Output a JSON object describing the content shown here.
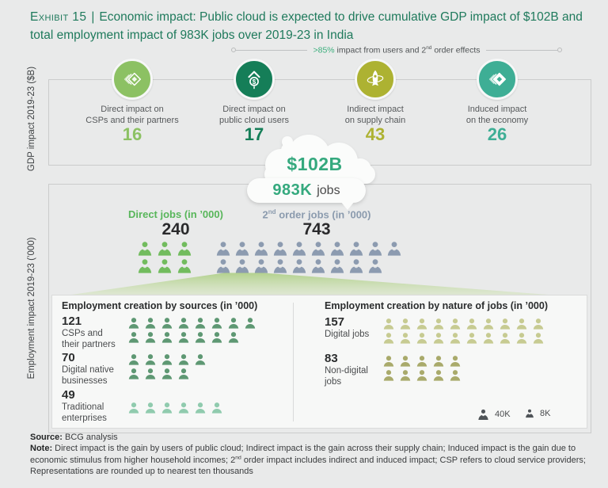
{
  "exhibit": {
    "label": "Exhibit 15",
    "separator": "|",
    "title": "Economic impact: Public cloud is expected to drive cumulative GDP impact of $102B and total employment impact of 983K jobs over 2019-23 in India"
  },
  "bracket": {
    "highlight": ">85%",
    "text_a": " impact from users and 2",
    "sup": "nd",
    "text_b": " order effects"
  },
  "gdp_section": {
    "axis_label": "GDP impact 2019-23 ($B)",
    "items": [
      {
        "label": "Direct impact on\nCSPs and their partners",
        "value": "16",
        "color": "#8CC163",
        "icon": "layered-diamond"
      },
      {
        "label": "Direct impact on\npublic cloud users",
        "value": "17",
        "color": "#157E58",
        "icon": "growth-dollar"
      },
      {
        "label": "Indirect impact\non supply chain",
        "value": "43",
        "color": "#ADB232",
        "icon": "rocket-orbit"
      },
      {
        "label": "Induced impact\non the economy",
        "value": "26",
        "color": "#3EAE95",
        "icon": "stacked-diamonds"
      }
    ]
  },
  "cloud": {
    "gdp_total": "$102B",
    "jobs_total": "983K",
    "jobs_suffix": "jobs"
  },
  "employment_section": {
    "axis_label": "Employment impact 2019-23 (’000)",
    "direct": {
      "label": "Direct jobs (in ’000)",
      "value": "240",
      "people": {
        "rows": [
          3,
          3
        ],
        "color": "#72BC5E",
        "type": "suit",
        "size": 20,
        "gap": 5
      }
    },
    "second_order": {
      "label_a": "2",
      "label_sup": "nd",
      "label_b": " order jobs (in ’000)",
      "value": "743",
      "people": {
        "rows": [
          10,
          9
        ],
        "color": "#8C9BB0",
        "type": "suit",
        "size": 20,
        "gap": 4
      }
    }
  },
  "breakdown": {
    "sources": {
      "header": "Employment creation by sources (in ’000)",
      "groups": [
        {
          "value": "121",
          "label": "CSPs and\ntheir partners",
          "people": {
            "rows": [
              8,
              7
            ],
            "color": "#5E9873",
            "type": "plain",
            "size": 16,
            "gap": 5
          }
        },
        {
          "value": "70",
          "label": "Digital native\nbusinesses",
          "people": {
            "rows": [
              5,
              4
            ],
            "color": "#5E9873",
            "type": "plain",
            "size": 16,
            "gap": 5
          }
        },
        {
          "value": "49",
          "label": "Traditional\nenterprises",
          "people": {
            "rows": [
              6
            ],
            "color": "#90CBAE",
            "type": "plain",
            "size": 16,
            "gap": 5
          }
        }
      ]
    },
    "nature": {
      "header": "Employment creation by nature of jobs (in ’000)",
      "groups": [
        {
          "value": "157",
          "label": "Digital jobs",
          "people": {
            "rows": [
              10,
              10
            ],
            "color": "#C7CB92",
            "type": "plain",
            "size": 16,
            "gap": 5
          }
        },
        {
          "value": "83",
          "label": "Non-digital\njobs",
          "people": {
            "rows": [
              5,
              5
            ],
            "color": "#A9AA6B",
            "type": "plain",
            "size": 16,
            "gap": 5
          }
        }
      ]
    },
    "legend": {
      "large": {
        "label": "40K",
        "people": {
          "rows": [
            1
          ],
          "color": "#4F5458",
          "type": "suit",
          "size": 15,
          "gap": 0
        }
      },
      "small": {
        "label": "8K",
        "people": {
          "rows": [
            1
          ],
          "color": "#4F5458",
          "type": "suit",
          "size": 12,
          "gap": 0
        }
      }
    }
  },
  "footer": {
    "source_bold": "Source:",
    "source_text": " BCG analysis",
    "note_bold": "Note:",
    "note_a": " Direct impact is the gain by users of public cloud; Indirect impact is the gain across their supply chain; Induced impact is the gain due to economic stimulus from higher household incomes; 2",
    "note_sup": "nd",
    "note_b": " order impact includes indirect and induced impact; CSP refers to cloud service providers; Representations are rounded up to nearest ten thousands"
  },
  "chart_data": [
    {
      "type": "bar",
      "title": "GDP impact 2019-23 ($B)",
      "categories": [
        "Direct impact on CSPs and their partners",
        "Direct impact on public cloud users",
        "Indirect impact on supply chain",
        "Induced impact on the economy"
      ],
      "values": [
        16,
        17,
        43,
        26
      ],
      "annotations": [
        "Cumulative GDP impact $102B",
        ">85% impact from users and 2nd order effects"
      ]
    },
    {
      "type": "bar",
      "title": "Employment impact 2019-23 ('000)",
      "categories": [
        "Direct jobs",
        "2nd order jobs"
      ],
      "values": [
        240,
        743
      ],
      "annotations": [
        "Total 983K jobs"
      ]
    },
    {
      "type": "bar",
      "title": "Employment creation by sources (in '000)",
      "categories": [
        "CSPs and their partners",
        "Digital native businesses",
        "Traditional enterprises"
      ],
      "values": [
        121,
        70,
        49
      ]
    },
    {
      "type": "bar",
      "title": "Employment creation by nature of jobs (in '000)",
      "categories": [
        "Digital jobs",
        "Non-digital jobs"
      ],
      "values": [
        157,
        83
      ],
      "legend_entries": [
        "1 large person icon = 40K jobs",
        "1 small person icon = 8K jobs"
      ]
    }
  ]
}
